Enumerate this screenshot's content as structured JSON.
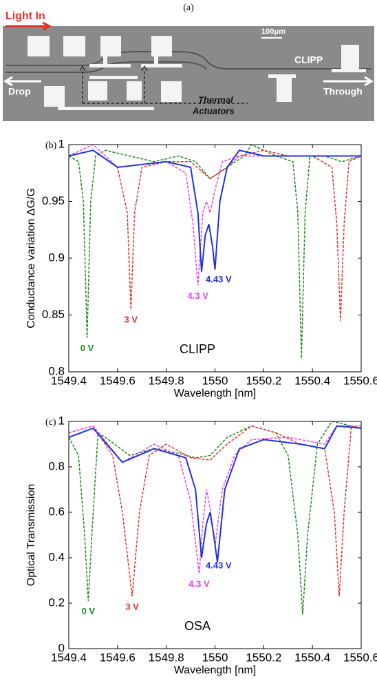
{
  "micrograph": {
    "panel_label": "(a)",
    "light_in": "Light In",
    "scale_bar": "100μm",
    "clipp": "CLIPP",
    "drop": "Drop",
    "through": "Through",
    "actuators": [
      "Thermal",
      "Actuators"
    ]
  },
  "chart_data": [
    {
      "type": "line",
      "panel_label": "(b)",
      "annotation": "CLIPP",
      "xlabel": "Wavelength [nm]",
      "ylabel": "Conductance variation ΔG/G",
      "xlim": [
        1549.4,
        1550.6
      ],
      "xticks": [
        1549.4,
        1549.6,
        1549.8,
        1550,
        1550.2,
        1550.4,
        1550.6
      ],
      "ylim": [
        0.8,
        1
      ],
      "yticks": [
        0.8,
        0.85,
        0.9,
        0.95,
        1
      ],
      "series": [
        {
          "name": "0 V",
          "color": "#1a8a1a",
          "dash": true,
          "x": [
            1549.4,
            1549.44,
            1549.46,
            1549.475,
            1549.49,
            1549.51,
            1549.55,
            1549.65,
            1549.75,
            1549.85,
            1549.92,
            1549.98,
            1550.05,
            1550.12,
            1550.15,
            1550.25,
            1550.32,
            1550.34,
            1550.355,
            1550.37,
            1550.39,
            1550.45,
            1550.52,
            1550.6
          ],
          "values": [
            0.99,
            0.985,
            0.95,
            0.83,
            0.95,
            0.99,
            0.995,
            0.99,
            0.985,
            0.99,
            0.985,
            0.97,
            0.98,
            0.99,
            1.0,
            0.99,
            0.985,
            0.94,
            0.812,
            0.94,
            0.99,
            0.99,
            0.985,
            0.99
          ]
        },
        {
          "name": "3 V",
          "color": "#e8302a",
          "dash": true,
          "x": [
            1549.4,
            1549.5,
            1549.6,
            1549.64,
            1549.655,
            1549.67,
            1549.7,
            1549.8,
            1549.9,
            1549.98,
            1550.05,
            1550.1,
            1550.2,
            1550.3,
            1550.4,
            1550.48,
            1550.5,
            1550.515,
            1550.53,
            1550.55,
            1550.6
          ],
          "values": [
            0.99,
            0.995,
            0.98,
            0.94,
            0.855,
            0.94,
            0.98,
            0.985,
            0.985,
            0.97,
            0.98,
            0.99,
            0.995,
            0.99,
            0.99,
            0.98,
            0.93,
            0.845,
            0.93,
            0.985,
            0.99
          ]
        },
        {
          "name": "4.3 V",
          "color": "#ee3ee8",
          "dash": true,
          "x": [
            1549.4,
            1549.5,
            1549.6,
            1549.8,
            1549.88,
            1549.91,
            1549.93,
            1549.95,
            1549.965,
            1549.98,
            1550.0,
            1550.03,
            1550.1,
            1550.2,
            1550.4,
            1550.6
          ],
          "values": [
            0.99,
            1.0,
            0.98,
            0.985,
            0.975,
            0.93,
            0.876,
            0.94,
            0.95,
            0.94,
            0.96,
            0.985,
            0.99,
            0.99,
            0.99,
            0.99
          ]
        },
        {
          "name": "4.43 V",
          "color": "#2030e0",
          "dash": false,
          "x": [
            1549.4,
            1549.5,
            1549.6,
            1549.8,
            1549.9,
            1549.93,
            1549.945,
            1549.96,
            1549.975,
            1549.99,
            1550.0,
            1550.02,
            1550.05,
            1550.1,
            1550.2,
            1550.4,
            1550.6
          ],
          "values": [
            0.99,
            0.995,
            0.98,
            0.985,
            0.98,
            0.94,
            0.888,
            0.92,
            0.93,
            0.91,
            0.89,
            0.95,
            0.98,
            0.995,
            0.99,
            0.99,
            0.99
          ]
        }
      ]
    },
    {
      "type": "line",
      "panel_label": "(c)",
      "annotation": "OSA",
      "xlabel": "Wavelength [nm]",
      "ylabel": "Optical Transmission",
      "xlim": [
        1549.4,
        1550.6
      ],
      "xticks": [
        1549.4,
        1549.6,
        1549.8,
        1550,
        1550.2,
        1550.4,
        1550.6
      ],
      "ylim": [
        0,
        1
      ],
      "yticks": [
        0,
        0.2,
        0.4,
        0.6,
        0.8,
        1
      ],
      "series": [
        {
          "name": "0 V",
          "color": "#1a8a1a",
          "dash": true,
          "x": [
            1549.4,
            1549.44,
            1549.465,
            1549.48,
            1549.5,
            1549.52,
            1549.55,
            1549.65,
            1549.75,
            1549.85,
            1549.92,
            1549.98,
            1550.05,
            1550.15,
            1550.25,
            1550.3,
            1550.34,
            1550.36,
            1550.38,
            1550.42,
            1550.48,
            1550.6
          ],
          "values": [
            0.93,
            0.85,
            0.5,
            0.21,
            0.6,
            0.95,
            0.93,
            0.85,
            0.88,
            0.86,
            0.84,
            0.85,
            0.93,
            0.98,
            0.95,
            0.85,
            0.5,
            0.15,
            0.5,
            0.9,
            1.0,
            0.97
          ]
        },
        {
          "name": "3 V",
          "color": "#e8302a",
          "dash": true,
          "x": [
            1549.4,
            1549.5,
            1549.58,
            1549.62,
            1549.66,
            1549.69,
            1549.73,
            1549.8,
            1549.9,
            1549.98,
            1550.05,
            1550.15,
            1550.25,
            1550.35,
            1550.45,
            1550.49,
            1550.51,
            1550.53,
            1550.56,
            1550.6
          ],
          "values": [
            0.95,
            0.98,
            0.85,
            0.6,
            0.23,
            0.6,
            0.85,
            0.9,
            0.84,
            0.83,
            0.9,
            0.98,
            0.95,
            0.9,
            0.88,
            0.6,
            0.23,
            0.6,
            0.98,
            0.97
          ]
        },
        {
          "name": "4.3 V",
          "color": "#ee3ee8",
          "dash": true,
          "x": [
            1549.4,
            1549.5,
            1549.62,
            1549.75,
            1549.85,
            1549.9,
            1549.935,
            1549.95,
            1549.965,
            1549.98,
            1550.0,
            1550.03,
            1550.08,
            1550.15,
            1550.3,
            1550.45,
            1550.5,
            1550.6
          ],
          "values": [
            0.95,
            0.98,
            0.82,
            0.9,
            0.85,
            0.65,
            0.33,
            0.55,
            0.7,
            0.62,
            0.45,
            0.7,
            0.85,
            0.92,
            0.93,
            0.9,
            0.98,
            0.98
          ]
        },
        {
          "name": "4.43 V",
          "color": "#2030e0",
          "dash": false,
          "x": [
            1549.4,
            1549.5,
            1549.62,
            1549.75,
            1549.88,
            1549.92,
            1549.945,
            1549.965,
            1549.98,
            1549.995,
            1550.01,
            1550.04,
            1550.1,
            1550.2,
            1550.35,
            1550.45,
            1550.5,
            1550.6
          ],
          "values": [
            0.93,
            0.97,
            0.82,
            0.88,
            0.84,
            0.7,
            0.4,
            0.55,
            0.6,
            0.5,
            0.38,
            0.7,
            0.88,
            0.92,
            0.9,
            0.88,
            0.98,
            0.97
          ]
        }
      ]
    }
  ]
}
